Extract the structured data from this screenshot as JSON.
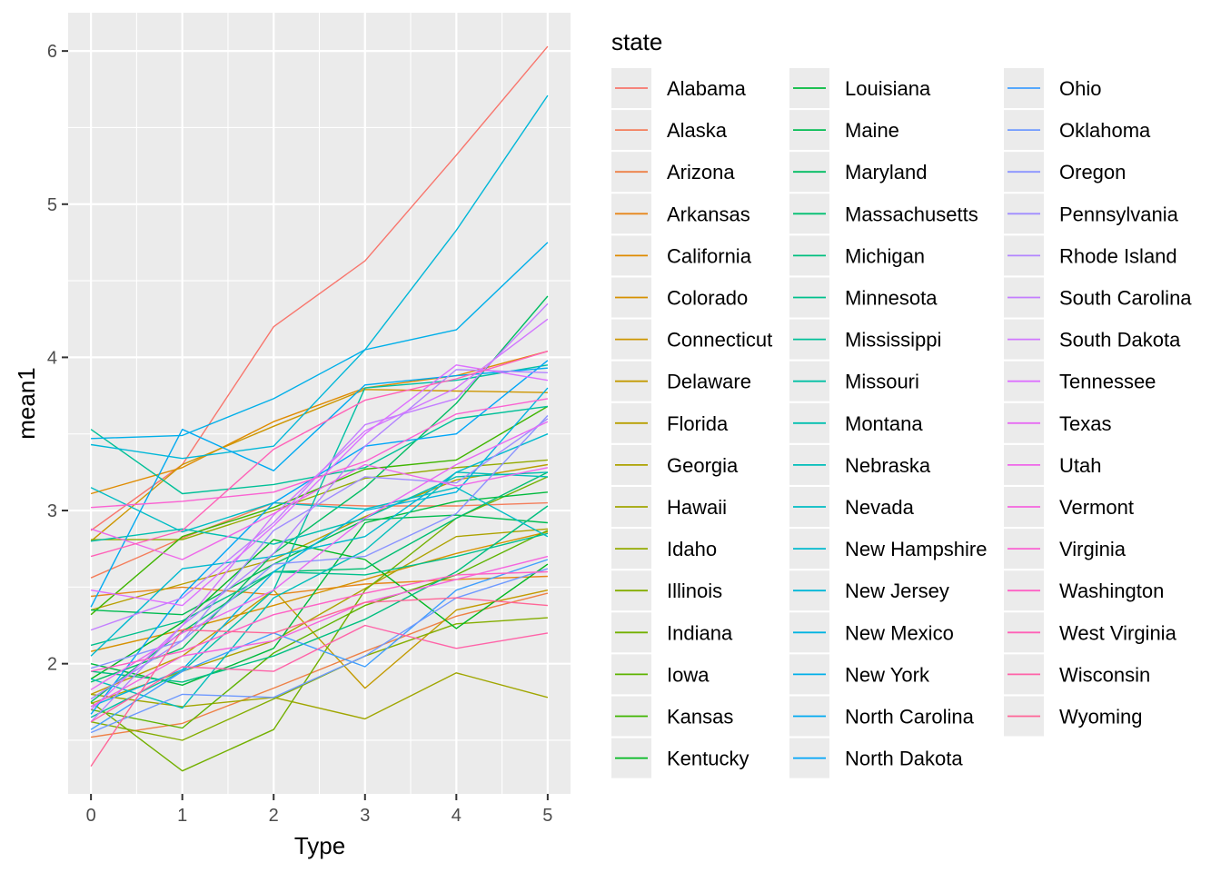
{
  "chart_data": {
    "type": "line",
    "xlabel": "Type",
    "ylabel": "mean1",
    "x": [
      0,
      1,
      2,
      3,
      4,
      5
    ],
    "xlim": [
      -0.25,
      5.25
    ],
    "ylim": [
      1.15,
      6.25
    ],
    "x_ticks": [
      "0",
      "1",
      "2",
      "3",
      "4",
      "5"
    ],
    "y_ticks": [
      "2",
      "3",
      "4",
      "5",
      "6"
    ],
    "y_tick_values": [
      2,
      3,
      4,
      5,
      6
    ],
    "grid": true,
    "background": "#ebebeb",
    "legend": {
      "title": "state",
      "placement": "right",
      "columns": 3
    },
    "series": [
      {
        "name": "Alabama",
        "color": "#F8766D",
        "values": [
          2.87,
          3.3,
          4.2,
          4.63,
          5.32,
          6.03
        ]
      },
      {
        "name": "Alaska",
        "color": "#F47D5A",
        "values": [
          2.56,
          2.82,
          3.05,
          3.03,
          3.03,
          3.05
        ]
      },
      {
        "name": "Arizona",
        "color": "#EE8046",
        "values": [
          1.52,
          1.61,
          1.84,
          2.08,
          2.31,
          2.46
        ]
      },
      {
        "name": "Arkansas",
        "color": "#E7861B",
        "values": [
          2.44,
          2.5,
          2.45,
          2.52,
          2.55,
          2.57
        ]
      },
      {
        "name": "California",
        "color": "#DF8B00",
        "values": [
          3.11,
          3.28,
          3.58,
          3.8,
          3.88,
          4.04
        ]
      },
      {
        "name": "Colorado",
        "color": "#D69100",
        "values": [
          2.08,
          2.22,
          2.38,
          2.55,
          2.72,
          2.86
        ]
      },
      {
        "name": "Connecticut",
        "color": "#CD9600",
        "values": [
          2.8,
          3.3,
          3.55,
          3.79,
          3.78,
          3.77
        ]
      },
      {
        "name": "Delaware",
        "color": "#C39A00",
        "values": [
          1.8,
          2.05,
          2.48,
          1.84,
          2.35,
          2.48
        ]
      },
      {
        "name": "Florida",
        "color": "#B89F00",
        "values": [
          2.35,
          2.52,
          2.68,
          2.96,
          3.2,
          3.3
        ]
      },
      {
        "name": "Georgia",
        "color": "#ADA200",
        "values": [
          1.74,
          1.95,
          2.15,
          2.49,
          2.83,
          2.88
        ]
      },
      {
        "name": "Hawaii",
        "color": "#A0A600",
        "values": [
          1.8,
          1.72,
          1.78,
          1.64,
          1.94,
          1.78
        ]
      },
      {
        "name": "Idaho",
        "color": "#93AA00",
        "values": [
          2.81,
          2.81,
          3.0,
          3.21,
          3.28,
          3.33
        ]
      },
      {
        "name": "Illinois",
        "color": "#84AD00",
        "values": [
          1.62,
          1.5,
          1.77,
          2.05,
          2.26,
          2.3
        ]
      },
      {
        "name": "Indiana",
        "color": "#73B000",
        "values": [
          1.75,
          1.3,
          1.57,
          2.48,
          2.95,
          3.22
        ]
      },
      {
        "name": "Iowa",
        "color": "#5EB300",
        "values": [
          1.7,
          1.58,
          2.07,
          2.38,
          2.58,
          2.87
        ]
      },
      {
        "name": "Kansas",
        "color": "#3FB500",
        "values": [
          2.32,
          2.83,
          3.02,
          3.27,
          3.33,
          3.68
        ]
      },
      {
        "name": "Kentucky",
        "color": "#00B81F",
        "values": [
          1.9,
          2.27,
          2.81,
          2.68,
          2.23,
          2.65
        ]
      },
      {
        "name": "Louisiana",
        "color": "#00BA3D",
        "values": [
          2.0,
          1.86,
          2.1,
          2.92,
          3.06,
          3.12
        ]
      },
      {
        "name": "Maine",
        "color": "#00BC51",
        "values": [
          2.35,
          2.32,
          2.65,
          2.94,
          2.97,
          2.92
        ]
      },
      {
        "name": "Maryland",
        "color": "#00BD62",
        "values": [
          1.88,
          2.1,
          2.72,
          3.15,
          3.7,
          4.4
        ]
      },
      {
        "name": "Massachusetts",
        "color": "#00BE71",
        "values": [
          1.75,
          2.21,
          2.6,
          2.62,
          2.95,
          3.25
        ]
      },
      {
        "name": "Michigan",
        "color": "#00BF7F",
        "values": [
          1.95,
          1.88,
          2.05,
          2.29,
          2.6,
          3.03
        ]
      },
      {
        "name": "Minnesota",
        "color": "#00C08C",
        "values": [
          2.12,
          2.28,
          2.6,
          2.58,
          2.7,
          2.85
        ]
      },
      {
        "name": "Mississippi",
        "color": "#00C098",
        "values": [
          3.53,
          3.11,
          3.17,
          3.28,
          3.6,
          3.68
        ]
      },
      {
        "name": "Missouri",
        "color": "#00C0A4",
        "values": [
          1.65,
          1.95,
          2.48,
          3.8,
          3.85,
          3.95
        ]
      },
      {
        "name": "Montana",
        "color": "#00BFAF",
        "values": [
          2.8,
          2.88,
          2.78,
          2.95,
          3.22,
          3.25
        ]
      },
      {
        "name": "Nebraska",
        "color": "#00BEBA",
        "values": [
          1.9,
          1.71,
          2.43,
          2.74,
          3.25,
          3.22
        ]
      },
      {
        "name": "Nevada",
        "color": "#00BCC4",
        "values": [
          3.15,
          2.86,
          3.05,
          3.01,
          3.15,
          2.83
        ]
      },
      {
        "name": "New Hampshire",
        "color": "#00B9CE",
        "values": [
          2.05,
          2.62,
          2.7,
          2.83,
          3.25,
          3.5
        ]
      },
      {
        "name": "New Jersey",
        "color": "#00B7D8",
        "values": [
          3.43,
          3.34,
          3.42,
          4.05,
          4.83,
          5.71
        ]
      },
      {
        "name": "New Mexico",
        "color": "#00B3E1",
        "values": [
          1.72,
          1.96,
          2.6,
          3.0,
          3.12,
          3.8
        ]
      },
      {
        "name": "New York",
        "color": "#00AFE9",
        "values": [
          3.47,
          3.49,
          3.73,
          4.05,
          4.18,
          4.75
        ]
      },
      {
        "name": "North Carolina",
        "color": "#00AAF1",
        "values": [
          2.37,
          3.53,
          3.26,
          3.82,
          3.88,
          3.93
        ]
      },
      {
        "name": "North Dakota",
        "color": "#00A5F8",
        "values": [
          1.67,
          2.45,
          3.05,
          3.42,
          3.5,
          3.98
        ]
      },
      {
        "name": "Ohio",
        "color": "#409FFE",
        "values": [
          1.57,
          1.95,
          2.2,
          1.98,
          2.48,
          2.68
        ]
      },
      {
        "name": "Oklahoma",
        "color": "#6E99FF",
        "values": [
          1.55,
          1.8,
          1.78,
          2.05,
          2.43,
          2.62
        ]
      },
      {
        "name": "Oregon",
        "color": "#8A93FF",
        "values": [
          1.97,
          2.15,
          2.65,
          2.7,
          2.98,
          3.62
        ]
      },
      {
        "name": "Pennsylvania",
        "color": "#A08CFF",
        "values": [
          1.77,
          2.15,
          2.87,
          3.22,
          3.18,
          3.6
        ]
      },
      {
        "name": "Rhode Island",
        "color": "#B385FF",
        "values": [
          1.62,
          2.25,
          2.72,
          3.42,
          3.92,
          3.9
        ]
      },
      {
        "name": "South Carolina",
        "color": "#C37EFF",
        "values": [
          2.22,
          2.43,
          2.92,
          3.56,
          3.73,
          4.35
        ]
      },
      {
        "name": "South Dakota",
        "color": "#D177FF",
        "values": [
          1.7,
          2.25,
          2.97,
          3.52,
          3.8,
          4.25
        ]
      },
      {
        "name": "Tennessee",
        "color": "#DD70FF",
        "values": [
          2.48,
          2.38,
          2.9,
          3.5,
          3.95,
          3.85
        ]
      },
      {
        "name": "Texas",
        "color": "#E76BF3",
        "values": [
          1.83,
          2.2,
          2.48,
          2.95,
          3.3,
          3.58
        ]
      },
      {
        "name": "Utah",
        "color": "#EF67E9",
        "values": [
          2.88,
          2.68,
          2.98,
          3.3,
          3.16,
          3.28
        ]
      },
      {
        "name": "Vermont",
        "color": "#F564DE",
        "values": [
          1.72,
          2.05,
          2.15,
          2.4,
          2.55,
          2.7
        ]
      },
      {
        "name": "Virginia",
        "color": "#FA62D2",
        "values": [
          3.02,
          3.06,
          3.12,
          3.32,
          3.63,
          3.73
        ]
      },
      {
        "name": "Washington",
        "color": "#FE61C5",
        "values": [
          1.95,
          2.08,
          2.32,
          2.46,
          2.58,
          2.6
        ]
      },
      {
        "name": "West Virginia",
        "color": "#FF61B7",
        "values": [
          2.7,
          2.87,
          3.4,
          3.72,
          3.86,
          4.04
        ]
      },
      {
        "name": "Wisconsin",
        "color": "#FF63A8",
        "values": [
          1.62,
          1.98,
          1.95,
          2.25,
          2.1,
          2.2
        ]
      },
      {
        "name": "Wyoming",
        "color": "#FF6697",
        "values": [
          1.33,
          2.22,
          2.2,
          2.4,
          2.43,
          2.38
        ]
      }
    ]
  }
}
